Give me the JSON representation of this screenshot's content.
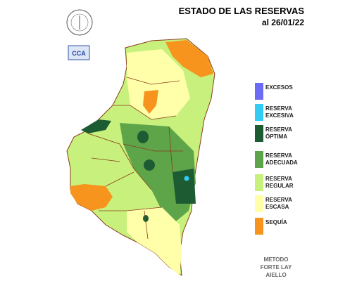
{
  "header": {
    "title": "ESTADO DE LAS RESERVAS",
    "date": "al 26/01/22"
  },
  "logo": {
    "label": "CCA"
  },
  "legend": {
    "items": [
      {
        "lines": [
          "EXCESOS"
        ],
        "color": "#6b6bf5"
      },
      {
        "lines": [
          "RESERVA",
          "EXCESIVA"
        ],
        "color": "#33ccf5"
      },
      {
        "lines": [
          "RESERVA",
          "ÓPTIMA"
        ],
        "color": "#1d5c33"
      },
      {
        "lines": [
          "RESERVA",
          "ADECUADA"
        ],
        "color": "#5ea54a"
      },
      {
        "lines": [
          "RESERVA",
          "REGULAR"
        ],
        "color": "#c8f07c"
      },
      {
        "lines": [
          "RESERVA",
          "ESCASA"
        ],
        "color": "#ffffaa"
      },
      {
        "lines": [
          "SEQUÍA"
        ],
        "color": "#f7941d"
      }
    ]
  },
  "method": {
    "lines": [
      "METODO",
      "FORTE LAY",
      "AIELLO"
    ]
  }
}
